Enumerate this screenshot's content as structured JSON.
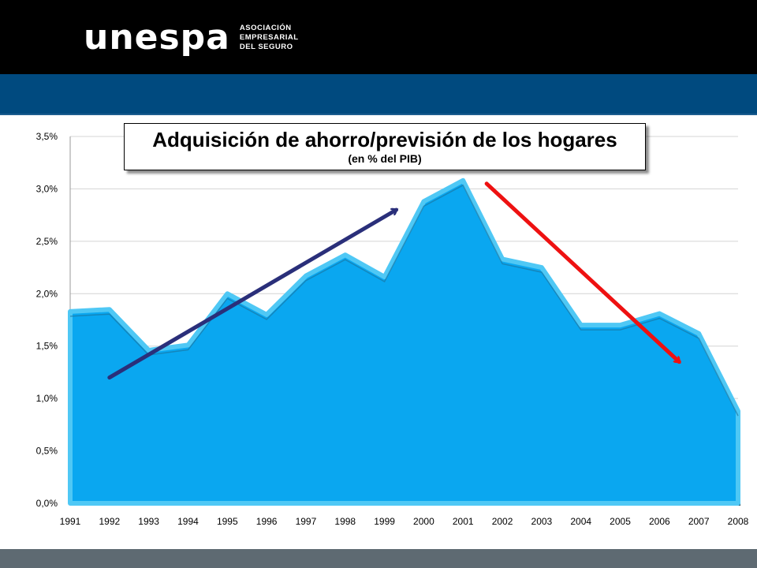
{
  "header": {
    "logo_text": "unespa",
    "logo_sub_lines": [
      "ASOCIACIÓN",
      "EMPRESARIAL",
      "DEL SEGURO"
    ]
  },
  "chart_data": {
    "type": "area",
    "title": "Adquisición de ahorro/previsión de los hogares",
    "subtitle": "(en % del PIB)",
    "categories": [
      "1991",
      "1992",
      "1993",
      "1994",
      "1995",
      "1996",
      "1997",
      "1998",
      "1999",
      "2000",
      "2001",
      "2002",
      "2003",
      "2004",
      "2005",
      "2006",
      "2007",
      "2008"
    ],
    "values": [
      1.83,
      1.85,
      1.46,
      1.51,
      2.0,
      1.8,
      2.17,
      2.37,
      2.16,
      2.88,
      3.08,
      2.33,
      2.25,
      1.7,
      1.7,
      1.81,
      1.62,
      0.88
    ],
    "y_ticks": [
      "0,0%",
      "0,5%",
      "1,0%",
      "1,5%",
      "2,0%",
      "2,5%",
      "3,0%",
      "3,5%"
    ],
    "ylim": [
      0,
      3.5
    ],
    "grid": true,
    "annotations": [
      {
        "type": "arrow",
        "color": "#2a2f7a",
        "from": {
          "x": 1992,
          "y": 1.2
        },
        "to": {
          "x": 1999.3,
          "y": 2.8
        }
      },
      {
        "type": "arrow",
        "color": "#ee1111",
        "from": {
          "x": 2001.6,
          "y": 3.05
        },
        "to": {
          "x": 2006.5,
          "y": 1.35
        }
      }
    ],
    "colors": {
      "fill": "#0aa7f0",
      "edge": "#4fc8f5",
      "outline": "#0a2a3a"
    }
  }
}
